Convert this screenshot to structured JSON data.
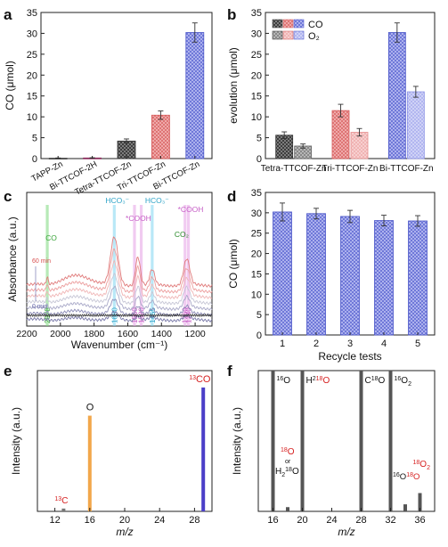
{
  "panels": {
    "a": "a",
    "b": "b",
    "c": "c",
    "d": "d",
    "e": "e",
    "f": "f"
  },
  "chart_data": [
    {
      "id": "a",
      "type": "bar",
      "ylabel": "CO (μmol)",
      "ylim": [
        0,
        35
      ],
      "yticks": [
        0,
        5,
        10,
        15,
        20,
        25,
        30,
        35
      ],
      "categories": [
        "TAPP-Zn",
        "Bi-TTCOF-2H",
        "Tetra-TTCOF-Zn",
        "Tri-TTCOF-Zn",
        "Bi-TTCOF-Zn"
      ],
      "values": [
        0.1,
        0.15,
        4.2,
        10.4,
        30.2
      ],
      "errors": [
        0.05,
        0.05,
        0.5,
        1.0,
        2.3
      ],
      "colors": [
        "#555555",
        "#8a2a5a",
        "#666666",
        "#e88a8a",
        "#6e78d8"
      ]
    },
    {
      "id": "b",
      "type": "bar",
      "ylabel": "evolution (μmol)",
      "ylim": [
        0,
        35
      ],
      "yticks": [
        0,
        5,
        10,
        15,
        20,
        25,
        30,
        35
      ],
      "categories": [
        "Tetra-TTCOF-Zn",
        "Tri-TTCOF-Zn",
        "Bi-TTCOF-Zn"
      ],
      "series": [
        {
          "name": "CO",
          "values": [
            5.6,
            11.5,
            30.2
          ],
          "errors": [
            0.8,
            1.5,
            2.3
          ]
        },
        {
          "name": "O₂",
          "values": [
            3.0,
            6.3,
            16.0
          ],
          "errors": [
            0.5,
            0.9,
            1.3
          ]
        }
      ],
      "colors": {
        "tetra": [
          "#555555",
          "#888888"
        ],
        "tri": [
          "#e37d7d",
          "#f3b8b8"
        ],
        "bi": [
          "#6e78d8",
          "#b6baf0"
        ]
      },
      "legend": "top-left"
    },
    {
      "id": "c",
      "type": "line",
      "xlabel": "Wavenumber (cm⁻¹)",
      "ylabel": "Absorbance (a.u.)",
      "xlim": [
        2200,
        1100
      ],
      "xticks": [
        2200,
        2000,
        1800,
        1600,
        1400,
        1200
      ],
      "annotations": {
        "co": "CO",
        "co2": "CO₂",
        "hco3_a": "HCO₃⁻",
        "hco3_b": "HCO₃⁻",
        "cooh_a": "*COOH",
        "cooh_b": "*COOH",
        "t_start": "60 min",
        "t_end": "0 min"
      },
      "bands": [
        {
          "label": "2078",
          "x": 2078,
          "color": "#7bd97b"
        },
        {
          "label": "1680",
          "x": 1680,
          "color": "#7fd6f0"
        },
        {
          "label": "1560",
          "x": 1560,
          "color": "#e6a0e6"
        },
        {
          "label": "1520",
          "x": 1520,
          "color": "#e6a0e6"
        },
        {
          "label": "1455",
          "x": 1455,
          "color": "#7fd6f0"
        },
        {
          "label": "1260",
          "x": 1260,
          "color": "#e6a0e6"
        },
        {
          "label": "1240",
          "x": 1240,
          "color": "#e6a0e6"
        }
      ],
      "series_colors": [
        "#e07a7a",
        "#ec9e9e",
        "#f0b6b6",
        "#c7c7d6",
        "#a9a9c8",
        "#8d8db8",
        "#7878a8"
      ]
    },
    {
      "id": "d",
      "type": "bar",
      "xlabel": "Recycle tests",
      "ylabel": "CO (μmol)",
      "ylim": [
        0,
        35
      ],
      "yticks": [
        0,
        5,
        10,
        15,
        20,
        25,
        30,
        35
      ],
      "categories": [
        "1",
        "2",
        "3",
        "4",
        "5"
      ],
      "values": [
        30.2,
        29.8,
        29.1,
        28.1,
        28.0
      ],
      "errors": [
        2.2,
        1.3,
        1.5,
        1.3,
        1.3
      ],
      "color": "#6e78d8"
    },
    {
      "id": "e",
      "type": "bar",
      "xlabel": "m/z",
      "ylabel": "Intensity (a.u.)",
      "xlim": [
        10,
        30
      ],
      "xticks": [
        12,
        16,
        20,
        24,
        28
      ],
      "values": [
        {
          "x": 13,
          "y": 0.02,
          "color": "#777777"
        },
        {
          "x": 16,
          "y": 0.68,
          "color": "#f2a74b"
        },
        {
          "x": 29,
          "y": 0.88,
          "color": "#4b3fc8"
        }
      ],
      "labels": {
        "c13": "13",
        "c13_el": "C",
        "o": "O",
        "co13": "13",
        "co13_el": "CO"
      }
    },
    {
      "id": "f",
      "type": "bar",
      "xlabel": "m/z",
      "ylabel": "Intensity (a.u.)",
      "xlim": [
        14,
        38
      ],
      "xticks": [
        16,
        20,
        24,
        28,
        32,
        36
      ],
      "values": [
        {
          "x": 16,
          "y": 1.0
        },
        {
          "x": 18,
          "y": 0.03
        },
        {
          "x": 20,
          "y": 1.0
        },
        {
          "x": 28,
          "y": 1.0
        },
        {
          "x": 32,
          "y": 1.0
        },
        {
          "x": 34,
          "y": 0.05
        },
        {
          "x": 36,
          "y": 0.13
        }
      ],
      "color": "#555555",
      "labels": {
        "o16": "O",
        "o16_sup": "16",
        "h2o18_pre": "H",
        "h2o18_sub": "2",
        "h2o18_sup": "18",
        "h2o18_el": "O",
        "co18_pre": "C",
        "co18_sup": "18",
        "co18_el": "O",
        "o32_sup": "16",
        "o32_el": "O",
        "o32_sub": "2",
        "o18_sup": "18",
        "o18_el": "O",
        "or": "or",
        "h2o_pre": "H",
        "h2o_sub": "2",
        "h2o_sup": "18",
        "h2o_el": "O",
        "o34_sup1": "16",
        "o34_el1": "O",
        "o34_sup2": "18",
        "o34_el2": "O",
        "o36_sup": "18",
        "o36_el": "O",
        "o36_sub": "2"
      }
    }
  ]
}
